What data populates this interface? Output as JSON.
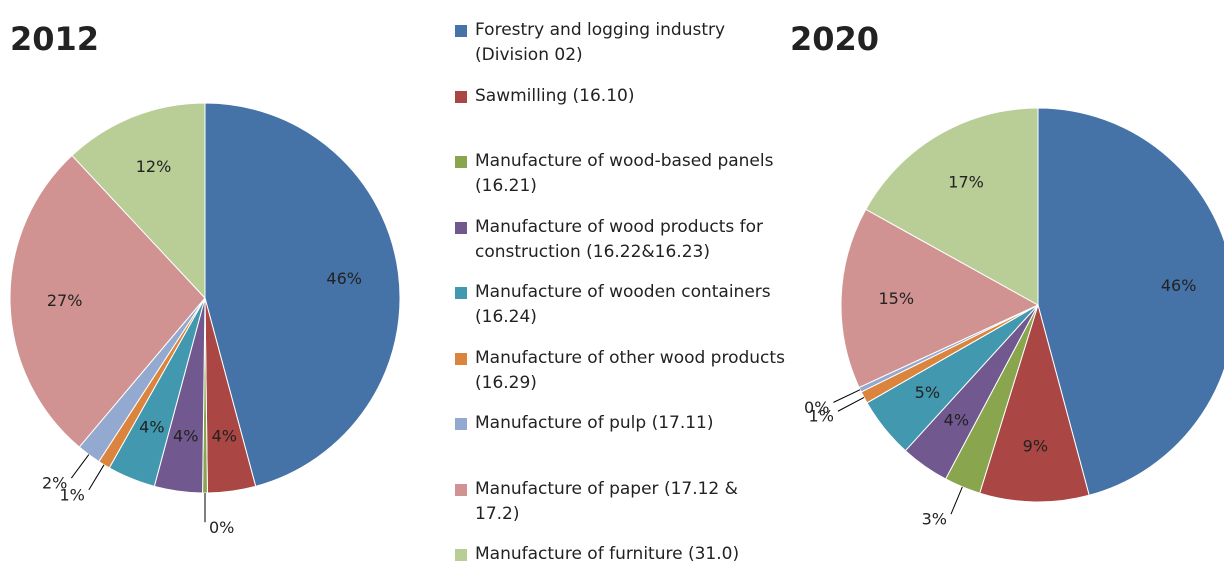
{
  "chart_data": [
    {
      "type": "pie",
      "title": "2012",
      "categories": [
        "Forestry and logging industry (Division 02)",
        "Sawmilling (16.10)",
        "Manufacture of wood-based panels (16.21)",
        "Manufacture of wood products for construction (16.22&16.23)",
        "Manufacture of wooden containers (16.24)",
        "Manufacture of other wood products (16.29)",
        "Manufacture of pulp (17.11)",
        "Manufacture of paper (17.12 & 17.2)",
        "Manufacture of furniture (31.0)"
      ],
      "colors": [
        "#4572a7",
        "#aa4643",
        "#89a54e",
        "#71588f",
        "#4198af",
        "#db843d",
        "#93a9cf",
        "#d19392",
        "#b9cd96"
      ],
      "values": [
        46,
        4,
        0.4,
        4,
        4,
        1,
        2,
        27,
        12
      ],
      "value_labels": [
        "46%",
        "4%",
        "0%",
        "4%",
        "4%",
        "1%",
        "2%",
        "27%",
        "12%"
      ]
    },
    {
      "type": "pie",
      "title": "2020",
      "values": [
        46,
        9,
        3,
        4,
        5,
        1,
        0.4,
        15,
        17
      ],
      "value_labels": [
        "46%",
        "9%",
        "3%",
        "4%",
        "5%",
        "1%",
        "0%",
        "15%",
        "17%"
      ]
    }
  ]
}
